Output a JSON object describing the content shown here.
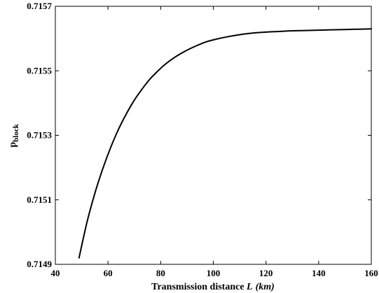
{
  "chart_data": {
    "type": "line",
    "xlabel": {
      "prefix": "Transmission distance ",
      "var": "L",
      "unit": "(km)"
    },
    "ylabel": {
      "base": "p",
      "sub": "block"
    },
    "xlim": [
      40,
      160
    ],
    "ylim": [
      0.7149,
      0.7157
    ],
    "xticks": [
      40,
      60,
      80,
      100,
      120,
      140,
      160
    ],
    "yticks": [
      0.7149,
      0.7151,
      0.7153,
      0.7155,
      0.7157
    ],
    "xtick_labels": [
      "40",
      "60",
      "80",
      "100",
      "120",
      "140",
      "160"
    ],
    "ytick_labels": [
      "0.7149",
      "0.7151",
      "0.7153",
      "0.7155",
      "0.7157"
    ],
    "grid": false,
    "series": [
      {
        "color": "#000000",
        "x": [
          49,
          52,
          55,
          58,
          61,
          64,
          67,
          70,
          73,
          76,
          79,
          82,
          85,
          88,
          91,
          94,
          97,
          100,
          105,
          110,
          115,
          120,
          125,
          130,
          135,
          140,
          145,
          150,
          155,
          160
        ],
        "y": [
          0.71492,
          0.71503,
          0.71512,
          0.715196,
          0.715262,
          0.715319,
          0.715367,
          0.715409,
          0.715444,
          0.715475,
          0.7155,
          0.715522,
          0.71554,
          0.715555,
          0.715568,
          0.715579,
          0.715589,
          0.715596,
          0.715605,
          0.715612,
          0.715617,
          0.71562,
          0.715622,
          0.715624,
          0.715625,
          0.715626,
          0.715627,
          0.715628,
          0.715629,
          0.71563
        ]
      }
    ]
  }
}
